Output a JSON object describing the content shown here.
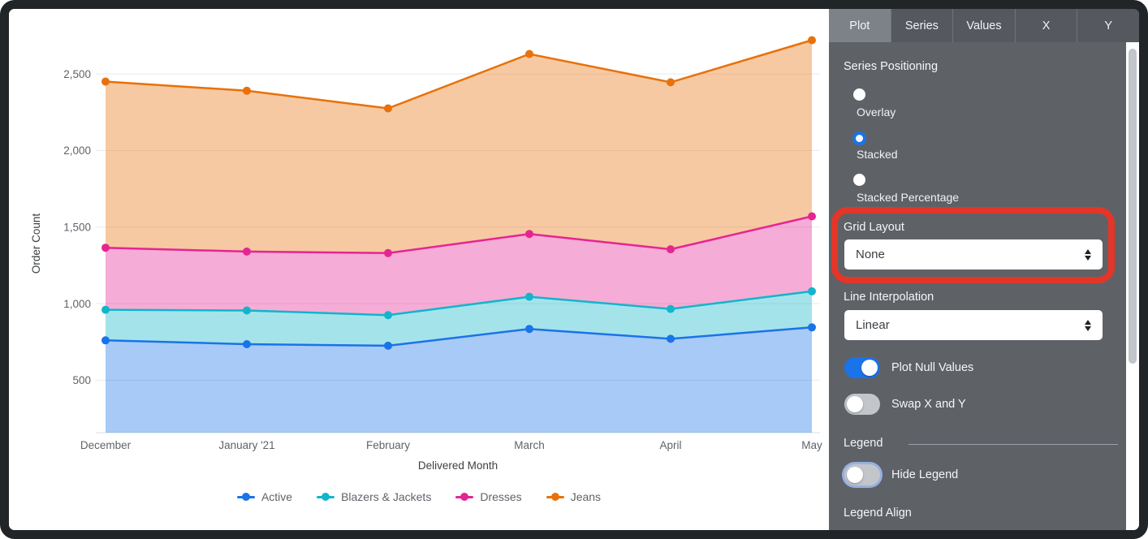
{
  "window": {
    "frame_color": "#212528",
    "panel_bg": "#5E6267",
    "accent_blue": "#1A73E8",
    "annotation_color": "#E33629"
  },
  "chart_data": {
    "type": "area",
    "stacking": "stacked",
    "x": [
      "December",
      "January '21",
      "February",
      "March",
      "April",
      "May"
    ],
    "xlabel": "Delivered Month",
    "ylabel": "Order Count",
    "ylim": [
      0,
      2750
    ],
    "yticks": [
      500,
      1000,
      1500,
      2000,
      2500
    ],
    "ytick_labels": [
      "500",
      "1,000",
      "1,500",
      "2,000",
      "2,500"
    ],
    "grid": true,
    "legend_position": "bottom",
    "series": [
      {
        "name": "Active",
        "color": "#1A73E8",
        "values": [
          760,
          735,
          725,
          835,
          770,
          845
        ]
      },
      {
        "name": "Blazers & Jackets",
        "color": "#12B5CB",
        "values": [
          200,
          220,
          200,
          210,
          195,
          235
        ]
      },
      {
        "name": "Dresses",
        "color": "#E52592",
        "values": [
          405,
          385,
          405,
          410,
          390,
          490
        ]
      },
      {
        "name": "Jeans",
        "color": "#E8710A",
        "values": [
          1085,
          1050,
          945,
          1175,
          1090,
          1150
        ]
      }
    ],
    "stacked_totals": [
      2450,
      2390,
      2275,
      2630,
      2445,
      2720
    ]
  },
  "panel": {
    "tabs": [
      {
        "label": "Plot",
        "active": true
      },
      {
        "label": "Series",
        "active": false
      },
      {
        "label": "Values",
        "active": false
      },
      {
        "label": "X",
        "active": false
      },
      {
        "label": "Y",
        "active": false
      }
    ],
    "series_positioning": {
      "label": "Series Positioning",
      "options": [
        {
          "label": "Overlay",
          "selected": false
        },
        {
          "label": "Stacked",
          "selected": true
        },
        {
          "label": "Stacked Percentage",
          "selected": false
        }
      ]
    },
    "grid_layout": {
      "label": "Grid Layout",
      "value": "None",
      "highlighted": true
    },
    "line_interpolation": {
      "label": "Line Interpolation",
      "value": "Linear"
    },
    "toggles": [
      {
        "label": "Plot Null Values",
        "on": true
      },
      {
        "label": "Swap X and Y",
        "on": false
      }
    ],
    "legend_section": {
      "label": "Legend",
      "hide_legend": {
        "label": "Hide Legend",
        "on": false
      },
      "legend_align_label": "Legend Align"
    }
  }
}
